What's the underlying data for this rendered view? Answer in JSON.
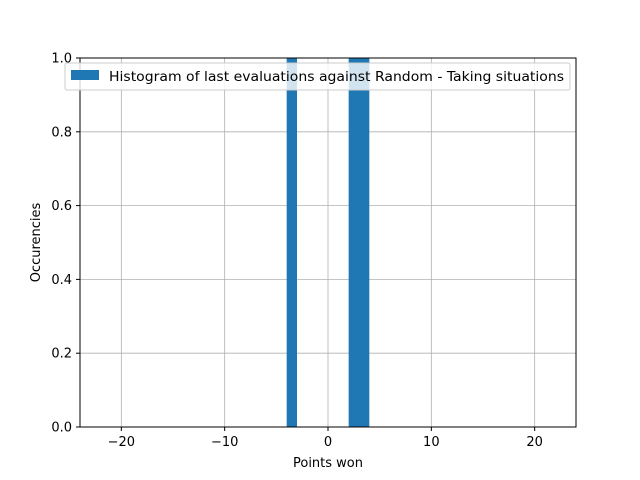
{
  "chart_data": {
    "type": "bar",
    "title": "",
    "xlabel": "Points won",
    "ylabel": "Occurencies",
    "xlim": [
      -24,
      24
    ],
    "ylim": [
      0,
      1.0
    ],
    "xticks": [
      -20,
      -10,
      0,
      10,
      20
    ],
    "xtick_labels": [
      "−20",
      "−10",
      "0",
      "10",
      "20"
    ],
    "yticks": [
      0.0,
      0.2,
      0.4,
      0.6,
      0.8,
      1.0
    ],
    "ytick_labels": [
      "0.0",
      "0.2",
      "0.4",
      "0.6",
      "0.8",
      "1.0"
    ],
    "grid": true,
    "legend_position": "top-right",
    "series": [
      {
        "name": "Histogram of last evaluations against Random - Taking situations",
        "color": "#1f77b4",
        "bins": [
          {
            "x0": -4,
            "x1": -3,
            "value": 1.0
          },
          {
            "x0": 2,
            "x1": 4,
            "value": 1.0
          }
        ]
      }
    ]
  }
}
